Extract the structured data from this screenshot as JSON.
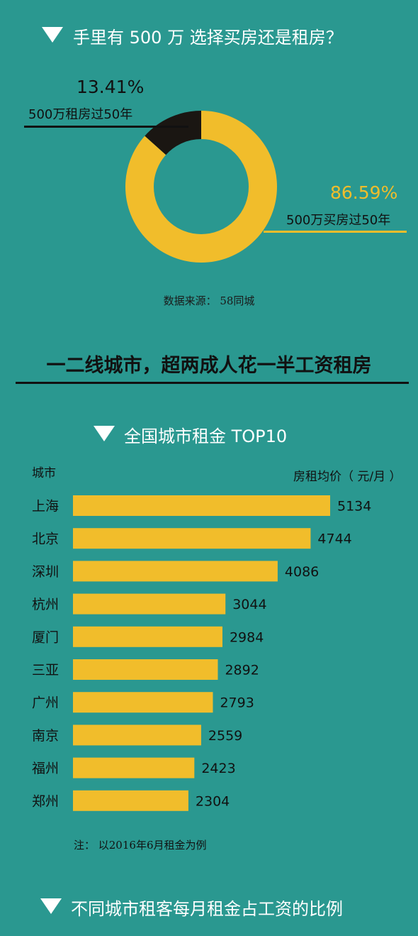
{
  "section1": {
    "title": "手里有 500 万 选择买房还是租房？",
    "rent_pct": "13.41%",
    "rent_label": "500万租房过50年",
    "buy_pct": "86.59%",
    "buy_label": "500万买房过50年",
    "source": "数据来源：  58同城"
  },
  "banner": "一二线城市，超两成人花一半工资租房",
  "section2": {
    "title": "全国城市租金 TOP10",
    "city_header": "城市",
    "value_header": "房租均价（ 元/月 ）",
    "footnote": "注：  以2016年6月租金为例"
  },
  "section3": {
    "title": "不同城市租客每月租金占工资的比例"
  },
  "colors": {
    "background": "#2a9890",
    "gold": "#f1bd2b",
    "dark": "#1a1612",
    "white": "#ffffff"
  },
  "chart_data": [
    {
      "type": "pie",
      "labels": [
        "500万租房过50年",
        "500万买房过50年"
      ],
      "values": [
        13.41,
        86.59
      ],
      "colors": [
        "#1a1612",
        "#f1bd2b"
      ]
    },
    {
      "type": "bar",
      "orientation": "horizontal",
      "title": "全国城市租金 TOP10",
      "xlabel": "房租均价（ 元/月 ）",
      "ylabel": "城市",
      "categories": [
        "上海",
        "北京",
        "深圳",
        "杭州",
        "厦门",
        "三亚",
        "广州",
        "南京",
        "福州",
        "郑州"
      ],
      "values": [
        5134,
        4744,
        4086,
        3044,
        2984,
        2892,
        2793,
        2559,
        2423,
        2304
      ],
      "grid": false
    }
  ]
}
